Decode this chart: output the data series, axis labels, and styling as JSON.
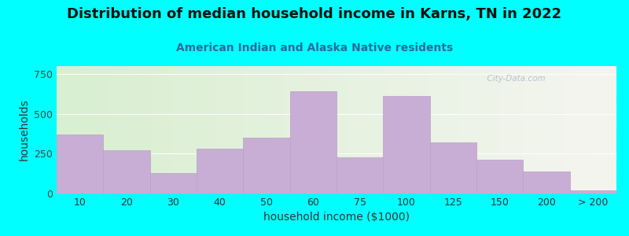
{
  "title": "Distribution of median household income in Karns, TN in 2022",
  "subtitle": "American Indian and Alaska Native residents",
  "xlabel": "household income ($1000)",
  "ylabel": "households",
  "background_outer": "#00FFFF",
  "bar_color": "#c8aed4",
  "bar_edge_color": "#b8a0c8",
  "categories": [
    "10",
    "20",
    "30",
    "40",
    "50",
    "60",
    "75",
    "100",
    "125",
    "150",
    "200",
    "> 200"
  ],
  "values": [
    370,
    270,
    130,
    280,
    350,
    640,
    225,
    610,
    320,
    210,
    140,
    20
  ],
  "ylim": [
    0,
    800
  ],
  "yticks": [
    0,
    250,
    500,
    750
  ],
  "title_fontsize": 13,
  "subtitle_fontsize": 10,
  "axis_label_fontsize": 10,
  "tick_fontsize": 9,
  "title_color": "#111111",
  "subtitle_color": "#2a6a9a",
  "watermark": "  City-Data.com"
}
